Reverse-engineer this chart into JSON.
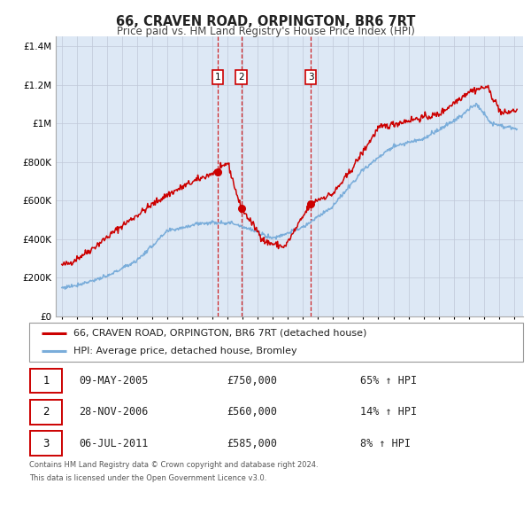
{
  "title": "66, CRAVEN ROAD, ORPINGTON, BR6 7RT",
  "subtitle": "Price paid vs. HM Land Registry's House Price Index (HPI)",
  "legend_line1": "66, CRAVEN ROAD, ORPINGTON, BR6 7RT (detached house)",
  "legend_line2": "HPI: Average price, detached house, Bromley",
  "transactions": [
    {
      "num": 1,
      "date_label": "09-MAY-2005",
      "date_x": 2005.36,
      "price": 750000,
      "pct": "65%",
      "dir": "↑"
    },
    {
      "num": 2,
      "date_label": "28-NOV-2006",
      "date_x": 2006.91,
      "price": 560000,
      "pct": "14%",
      "dir": "↑"
    },
    {
      "num": 3,
      "date_label": "06-JUL-2011",
      "date_x": 2011.51,
      "price": 585000,
      "pct": "8%",
      "dir": "↑"
    }
  ],
  "table_rows": [
    {
      "num": 1,
      "date": "09-MAY-2005",
      "price": "£750,000",
      "pct": "65% ↑ HPI"
    },
    {
      "num": 2,
      "date": "28-NOV-2006",
      "price": "£560,000",
      "pct": "14% ↑ HPI"
    },
    {
      "num": 3,
      "date": "06-JUL-2011",
      "price": "£585,000",
      "pct": "8% ↑ HPI"
    }
  ],
  "footer_line1": "Contains HM Land Registry data © Crown copyright and database right 2024.",
  "footer_line2": "This data is licensed under the Open Government Licence v3.0.",
  "red_color": "#cc0000",
  "blue_color": "#7aadda",
  "background_color": "#dde8f5",
  "grid_color": "#c0c8d8",
  "ylim": [
    0,
    1450000
  ],
  "yticks": [
    0,
    200000,
    400000,
    600000,
    800000,
    1000000,
    1200000,
    1400000
  ],
  "ylabels": [
    "£0",
    "£200K",
    "£400K",
    "£600K",
    "£800K",
    "£1M",
    "£1.2M",
    "£1.4M"
  ],
  "xlim_start": 1994.6,
  "xlim_end": 2025.6,
  "xticks": [
    1995,
    1996,
    1997,
    1998,
    1999,
    2000,
    2001,
    2002,
    2003,
    2004,
    2005,
    2006,
    2007,
    2008,
    2009,
    2010,
    2011,
    2012,
    2013,
    2014,
    2015,
    2016,
    2017,
    2018,
    2019,
    2020,
    2021,
    2022,
    2023,
    2024,
    2025
  ]
}
